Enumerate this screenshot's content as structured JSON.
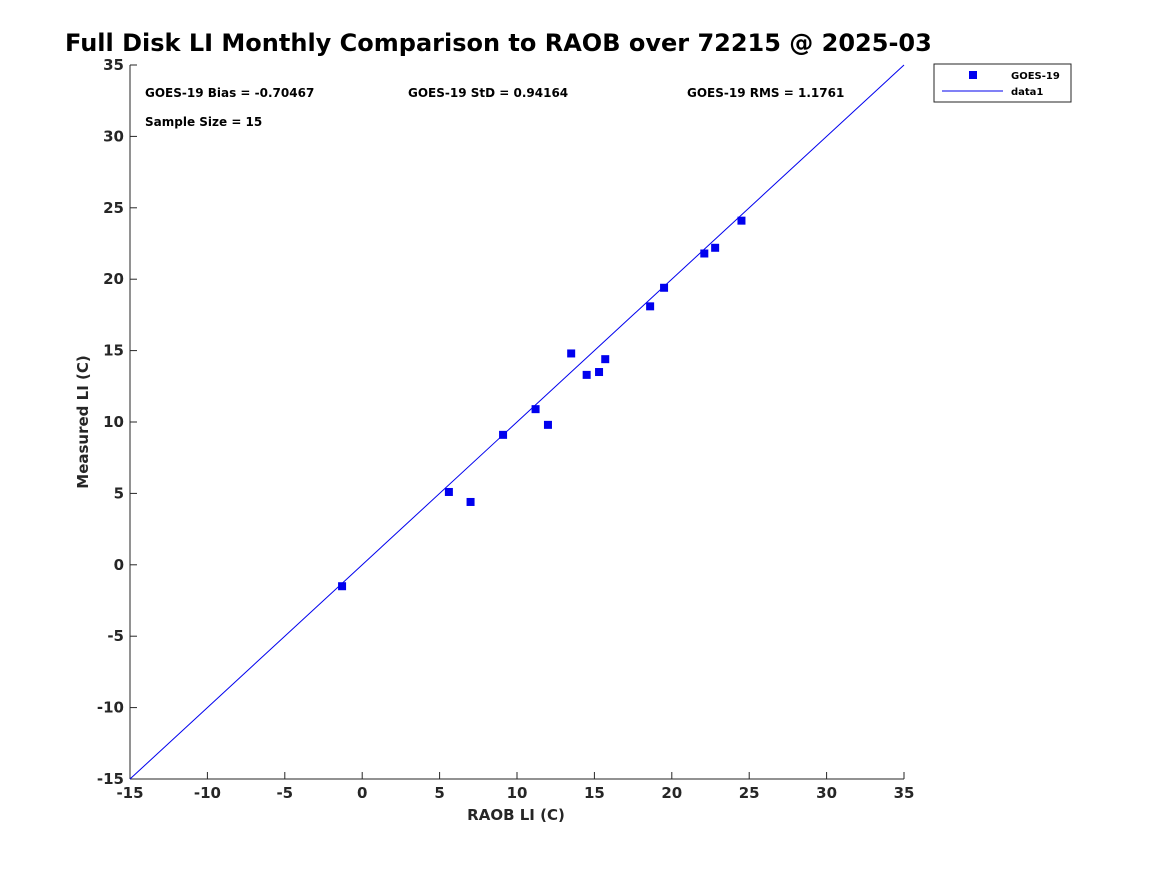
{
  "chart_data": {
    "type": "scatter",
    "title": "Full Disk LI Monthly Comparison to RAOB over 72215 @ 2025-03",
    "xlabel": "RAOB LI (C)",
    "ylabel": "Measured LI (C)",
    "xlim": [
      -15,
      35
    ],
    "ylim": [
      -15,
      35
    ],
    "xticks": [
      "-15",
      "-10",
      "-5",
      "0",
      "5",
      "10",
      "15",
      "20",
      "25",
      "30",
      "35"
    ],
    "yticks": [
      "-15",
      "-10",
      "-5",
      "0",
      "5",
      "10",
      "15",
      "20",
      "25",
      "30",
      "35"
    ],
    "stats": {
      "bias": "GOES-19 Bias = -0.70467",
      "std": "GOES-19 StD = 0.94164",
      "rms": "GOES-19 RMS = 1.1761",
      "sample": "Sample Size = 15"
    },
    "legend": {
      "placement": "top-right outside",
      "entries": [
        "GOES-19",
        "data1"
      ]
    },
    "series": [
      {
        "name": "GOES-19",
        "marker": "square",
        "color": "#0000ee",
        "points": [
          [
            -1.3,
            -1.5
          ],
          [
            5.6,
            5.1
          ],
          [
            7.0,
            4.4
          ],
          [
            9.1,
            9.1
          ],
          [
            11.2,
            10.9
          ],
          [
            12.0,
            9.8
          ],
          [
            13.5,
            14.8
          ],
          [
            14.5,
            13.3
          ],
          [
            15.3,
            13.5
          ],
          [
            15.7,
            14.4
          ],
          [
            18.6,
            18.1
          ],
          [
            19.5,
            19.4
          ],
          [
            22.1,
            21.8
          ],
          [
            22.8,
            22.2
          ],
          [
            24.5,
            24.1
          ]
        ]
      },
      {
        "name": "data1",
        "type": "line",
        "color": "#0000ee",
        "points": [
          [
            -15,
            -15
          ],
          [
            35,
            35
          ]
        ]
      }
    ],
    "grid": false
  }
}
